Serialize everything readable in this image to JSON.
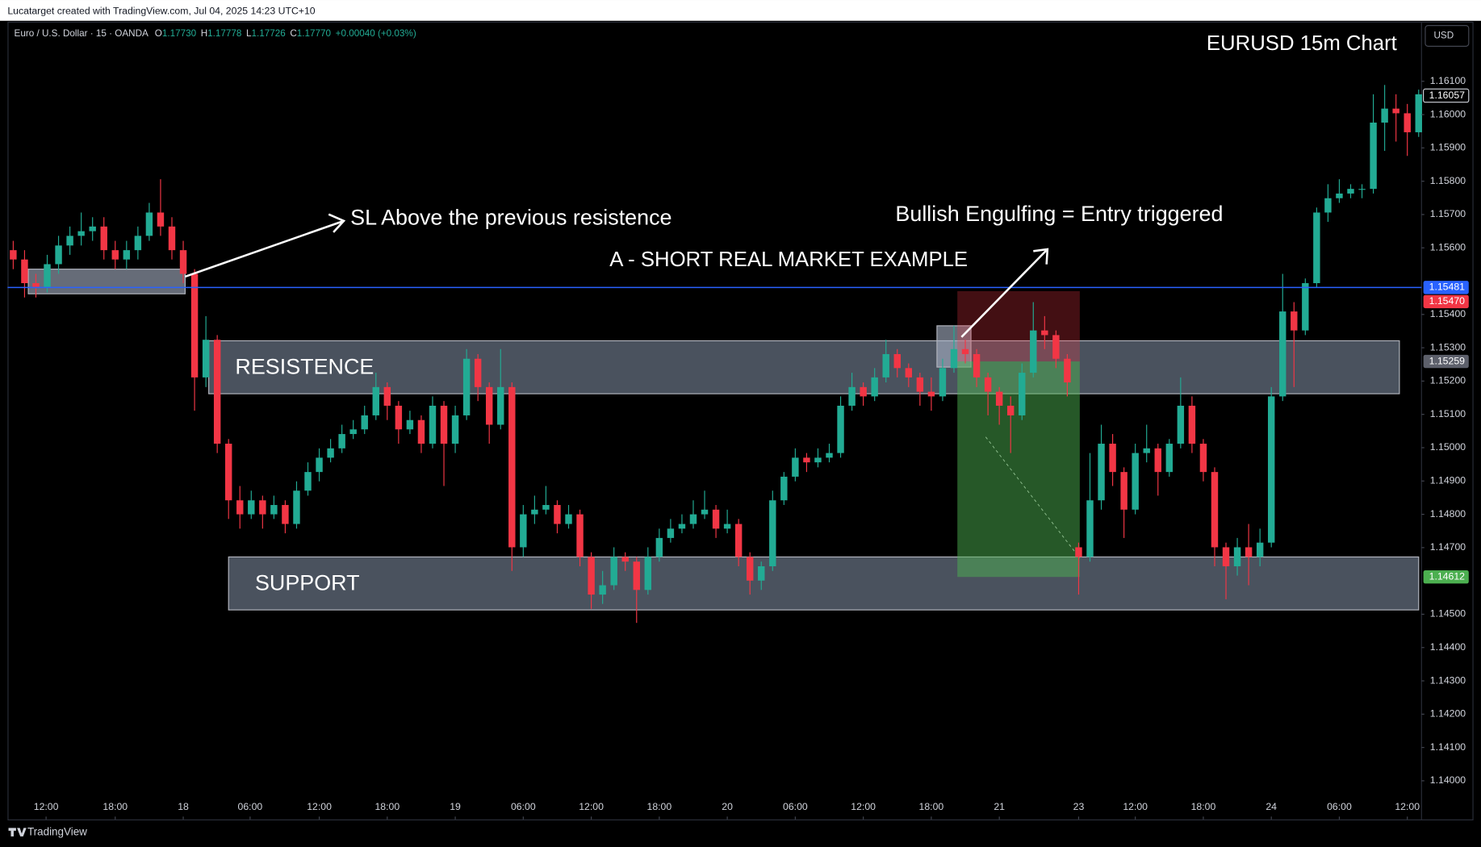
{
  "chart_data": {
    "type": "candlestick",
    "header": "Lucatarget created with TradingView.com, Jul 04, 2025 14:23 UTC+10",
    "title": "EURUSD 15m Chart",
    "legend": {
      "symbol": "Euro / U.S. Dollar · 15 · OANDA",
      "fields": [
        {
          "key": "O",
          "value": "1.17730"
        },
        {
          "key": "H",
          "value": "1.17778"
        },
        {
          "key": "L",
          "value": "1.17726"
        },
        {
          "key": "C",
          "value": "1.17770"
        }
      ],
      "change": "+0.00040 (+0.03%)"
    },
    "currency": "USD",
    "footer": "TradingView",
    "annotations": [
      "SL Above the previous resistence",
      "Bullish Engulfing = Entry triggered",
      "A - SHORT REAL MARKET EXAMPLE"
    ],
    "up_color": "#22ab94",
    "down_color": "#f23645",
    "xlim": [
      0,
      124.75
    ],
    "ylim": [
      1.13884,
      1.16276
    ],
    "yticks": [
      {
        "value": 1.161,
        "label": "1.16100"
      },
      {
        "value": 1.16,
        "label": "1.16000"
      },
      {
        "value": 1.159,
        "label": "1.15900"
      },
      {
        "value": 1.158,
        "label": "1.15800"
      },
      {
        "value": 1.157,
        "label": "1.15700"
      },
      {
        "value": 1.156,
        "label": "1.15600"
      },
      {
        "value": 1.154,
        "label": "1.15400"
      },
      {
        "value": 1.153,
        "label": "1.15300"
      },
      {
        "value": 1.152,
        "label": "1.15200"
      },
      {
        "value": 1.151,
        "label": "1.15100"
      },
      {
        "value": 1.15,
        "label": "1.15000"
      },
      {
        "value": 1.149,
        "label": "1.14900"
      },
      {
        "value": 1.148,
        "label": "1.14800"
      },
      {
        "value": 1.147,
        "label": "1.14700"
      },
      {
        "value": 1.145,
        "label": "1.14500"
      },
      {
        "value": 1.144,
        "label": "1.14400"
      },
      {
        "value": 1.143,
        "label": "1.14300"
      },
      {
        "value": 1.142,
        "label": "1.14200"
      },
      {
        "value": 1.141,
        "label": "1.14100"
      },
      {
        "value": 1.14,
        "label": "1.14000"
      }
    ],
    "xticks": [
      {
        "value": 3.4,
        "label": "12:00"
      },
      {
        "value": 9.5,
        "label": "18:00"
      },
      {
        "value": 15.5,
        "label": "18"
      },
      {
        "value": 21.4,
        "label": "06:00"
      },
      {
        "value": 27.5,
        "label": "12:00"
      },
      {
        "value": 33.5,
        "label": "18:00"
      },
      {
        "value": 39.5,
        "label": "19"
      },
      {
        "value": 45.5,
        "label": "06:00"
      },
      {
        "value": 51.5,
        "label": "12:00"
      },
      {
        "value": 57.5,
        "label": "18:00"
      },
      {
        "value": 63.5,
        "label": "20"
      },
      {
        "value": 69.5,
        "label": "06:00"
      },
      {
        "value": 75.5,
        "label": "12:00"
      },
      {
        "value": 81.5,
        "label": "18:00"
      },
      {
        "value": 87.5,
        "label": "21"
      },
      {
        "value": 94.5,
        "label": "23"
      },
      {
        "value": 99.5,
        "label": "12:00"
      },
      {
        "value": 105.5,
        "label": "18:00"
      },
      {
        "value": 111.5,
        "label": "24"
      },
      {
        "value": 117.5,
        "label": "06:00"
      },
      {
        "value": 123.5,
        "label": "12:00"
      }
    ],
    "open": [
      1.15593,
      1.15565,
      1.15494,
      1.1548,
      1.15551,
      1.15607,
      1.15636,
      1.1565,
      1.15664,
      1.15593,
      1.15565,
      1.15593,
      1.15636,
      1.15706,
      1.15664,
      1.15593,
      1.15522,
      1.15211,
      1.15324,
      1.15012,
      1.14842,
      1.148,
      1.14842,
      1.148,
      1.14828,
      1.14771,
      1.14871,
      1.14927,
      1.1497,
      1.14998,
      1.15041,
      1.15055,
      1.15097,
      1.15182,
      1.15126,
      1.15055,
      1.15083,
      1.15012,
      1.15126,
      1.15012,
      1.15097,
      1.15267,
      1.15182,
      1.15069,
      1.15182,
      1.14701,
      1.148,
      1.14814,
      1.14828,
      1.14771,
      1.148,
      1.14672,
      1.14559,
      1.14587,
      1.14672,
      1.14658,
      1.14573,
      1.14672,
      1.14729,
      1.14757,
      1.14771,
      1.148,
      1.14814,
      1.14757,
      1.14771,
      1.14672,
      1.14601,
      1.14644,
      1.14842,
      1.14913,
      1.1497,
      1.14956,
      1.1497,
      1.14984,
      1.15126,
      1.15182,
      1.15154,
      1.15211,
      1.15281,
      1.15239,
      1.15211,
      1.15168,
      1.15154,
      1.15239,
      1.15296,
      1.15281,
      1.15211,
      1.15168,
      1.15126,
      1.15097,
      1.15225,
      1.15352,
      1.15338,
      1.15267,
      1.14701,
      1.14672,
      1.14842,
      1.15012,
      1.14927,
      1.14814,
      1.14984,
      1.14998,
      1.14927,
      1.15012,
      1.15126,
      1.15012,
      1.14927,
      1.14701,
      1.14644,
      1.14701,
      1.14672,
      1.14715,
      1.15154,
      1.15409,
      1.15352,
      1.15494,
      1.15706,
      1.15749,
      1.15763,
      1.15777,
      1.15777,
      1.15976,
      1.16018,
      1.16004,
      1.15947
    ],
    "high": [
      1.15621,
      1.15593,
      1.15522,
      1.15579,
      1.15636,
      1.15664,
      1.15706,
      1.15692,
      1.15692,
      1.15621,
      1.15621,
      1.15664,
      1.15735,
      1.15806,
      1.15692,
      1.15621,
      1.15536,
      1.15395,
      1.15338,
      1.15026,
      1.14885,
      1.14871,
      1.14856,
      1.14856,
      1.14842,
      1.14899,
      1.14956,
      1.14998,
      1.15026,
      1.15069,
      1.15083,
      1.15126,
      1.15225,
      1.15196,
      1.1514,
      1.15111,
      1.15097,
      1.15154,
      1.1514,
      1.15126,
      1.15296,
      1.15281,
      1.15196,
      1.15296,
      1.15196,
      1.14828,
      1.14856,
      1.14885,
      1.14842,
      1.14828,
      1.14814,
      1.14686,
      1.1463,
      1.14701,
      1.14686,
      1.14672,
      1.14701,
      1.14757,
      1.14786,
      1.148,
      1.14842,
      1.14871,
      1.14828,
      1.14814,
      1.14786,
      1.14686,
      1.14658,
      1.14871,
      1.14927,
      1.14998,
      1.14984,
      1.14998,
      1.15012,
      1.15154,
      1.15225,
      1.15196,
      1.15239,
      1.15324,
      1.15296,
      1.15253,
      1.15225,
      1.15211,
      1.15267,
      1.15366,
      1.15324,
      1.15296,
      1.15225,
      1.15182,
      1.15154,
      1.15253,
      1.15437,
      1.15395,
      1.15352,
      1.15281,
      1.14715,
      1.14984,
      1.15069,
      1.15041,
      1.14941,
      1.15012,
      1.15069,
      1.15012,
      1.15026,
      1.15211,
      1.15154,
      1.15026,
      1.14941,
      1.14715,
      1.14729,
      1.14771,
      1.14757,
      1.15182,
      1.15522,
      1.15437,
      1.15508,
      1.15721,
      1.15791,
      1.15806,
      1.15791,
      1.15791,
      1.16061,
      1.16089,
      1.16061,
      1.16032,
      1.16075
    ],
    "low": [
      1.15536,
      1.15451,
      1.15451,
      1.15466,
      1.15522,
      1.15579,
      1.15607,
      1.15621,
      1.15565,
      1.15536,
      1.15536,
      1.15565,
      1.15621,
      1.15636,
      1.15565,
      1.15494,
      1.15111,
      1.15182,
      1.14984,
      1.14786,
      1.14757,
      1.14786,
      1.14757,
      1.14786,
      1.14743,
      1.14757,
      1.14856,
      1.14899,
      1.14956,
      1.14984,
      1.15026,
      1.15041,
      1.15083,
      1.15083,
      1.15012,
      1.15041,
      1.14984,
      1.14998,
      1.14885,
      1.14984,
      1.15083,
      1.1514,
      1.15012,
      1.15055,
      1.1463,
      1.14672,
      1.14771,
      1.148,
      1.14743,
      1.14757,
      1.14644,
      1.14516,
      1.14531,
      1.14573,
      1.1463,
      1.14474,
      1.14559,
      1.14658,
      1.14715,
      1.14743,
      1.14757,
      1.14786,
      1.14729,
      1.14743,
      1.14644,
      1.14559,
      1.14573,
      1.1463,
      1.14828,
      1.14899,
      1.14927,
      1.14941,
      1.14956,
      1.1497,
      1.15111,
      1.15126,
      1.1514,
      1.15196,
      1.15211,
      1.15182,
      1.15126,
      1.15111,
      1.1514,
      1.15225,
      1.15253,
      1.15182,
      1.15097,
      1.15069,
      1.14984,
      1.15083,
      1.15211,
      1.15296,
      1.15239,
      1.15154,
      1.14559,
      1.14658,
      1.14814,
      1.14885,
      1.14729,
      1.148,
      1.14956,
      1.14856,
      1.14913,
      1.14998,
      1.14984,
      1.14899,
      1.14644,
      1.14545,
      1.14616,
      1.14587,
      1.14644,
      1.14701,
      1.1514,
      1.15182,
      1.15338,
      1.1548,
      1.15678,
      1.15735,
      1.15749,
      1.15749,
      1.15763,
      1.15891,
      1.15919,
      1.15876,
      1.15933
    ],
    "close": [
      1.15565,
      1.15494,
      1.1548,
      1.15551,
      1.15607,
      1.15636,
      1.1565,
      1.15664,
      1.15593,
      1.15565,
      1.15593,
      1.15636,
      1.15706,
      1.15664,
      1.15593,
      1.15522,
      1.15211,
      1.15324,
      1.15012,
      1.14842,
      1.148,
      1.14842,
      1.148,
      1.14828,
      1.14771,
      1.14871,
      1.14927,
      1.1497,
      1.14998,
      1.15041,
      1.15055,
      1.15097,
      1.15182,
      1.15126,
      1.15055,
      1.15083,
      1.15012,
      1.15126,
      1.15012,
      1.15097,
      1.15267,
      1.15182,
      1.15069,
      1.15182,
      1.14701,
      1.148,
      1.14814,
      1.14828,
      1.14771,
      1.148,
      1.14672,
      1.14559,
      1.14587,
      1.14672,
      1.14658,
      1.14573,
      1.14672,
      1.14729,
      1.14757,
      1.14771,
      1.148,
      1.14814,
      1.14757,
      1.14771,
      1.14672,
      1.14601,
      1.14644,
      1.14842,
      1.14913,
      1.1497,
      1.14956,
      1.1497,
      1.14984,
      1.15126,
      1.15182,
      1.15154,
      1.15211,
      1.15281,
      1.15239,
      1.15211,
      1.15168,
      1.15154,
      1.15239,
      1.15296,
      1.15281,
      1.15211,
      1.15168,
      1.15126,
      1.15097,
      1.15225,
      1.15352,
      1.15338,
      1.15267,
      1.15196,
      1.14672,
      1.14842,
      1.15012,
      1.14927,
      1.14814,
      1.14984,
      1.14998,
      1.14927,
      1.15012,
      1.15126,
      1.15012,
      1.14927,
      1.14701,
      1.14644,
      1.14701,
      1.14672,
      1.14715,
      1.15154,
      1.15409,
      1.15352,
      1.15494,
      1.15706,
      1.15749,
      1.15763,
      1.15777,
      1.15777,
      1.15976,
      1.16018,
      1.16004,
      1.15947,
      1.16061
    ],
    "zones": [
      {
        "label": "RESISTENCE",
        "top": 1.15321,
        "bottom": 1.15162,
        "x": [
          17.75,
          122.8
        ]
      },
      {
        "label": "SUPPORT",
        "top": 1.14672,
        "bottom": 1.14513,
        "x": [
          19.5,
          124.5
        ]
      },
      {
        "top": 1.15536,
        "bottom": 1.15462,
        "x": [
          1.83,
          15.67
        ]
      },
      {
        "top": 1.15366,
        "bottom": 1.15242,
        "x": [
          82,
          85
        ]
      }
    ],
    "position": {
      "stop": {
        "value": 1.1547,
        "label": "1.15470"
      },
      "entry": {
        "value": 1.15259,
        "label": "1.15259"
      },
      "target": {
        "value": 1.14612,
        "label": "1.14612"
      },
      "x": [
        83.8,
        94.6
      ]
    },
    "hline": {
      "value": 1.15481,
      "color": "#2962ff"
    },
    "last_price": 1.16057
  }
}
